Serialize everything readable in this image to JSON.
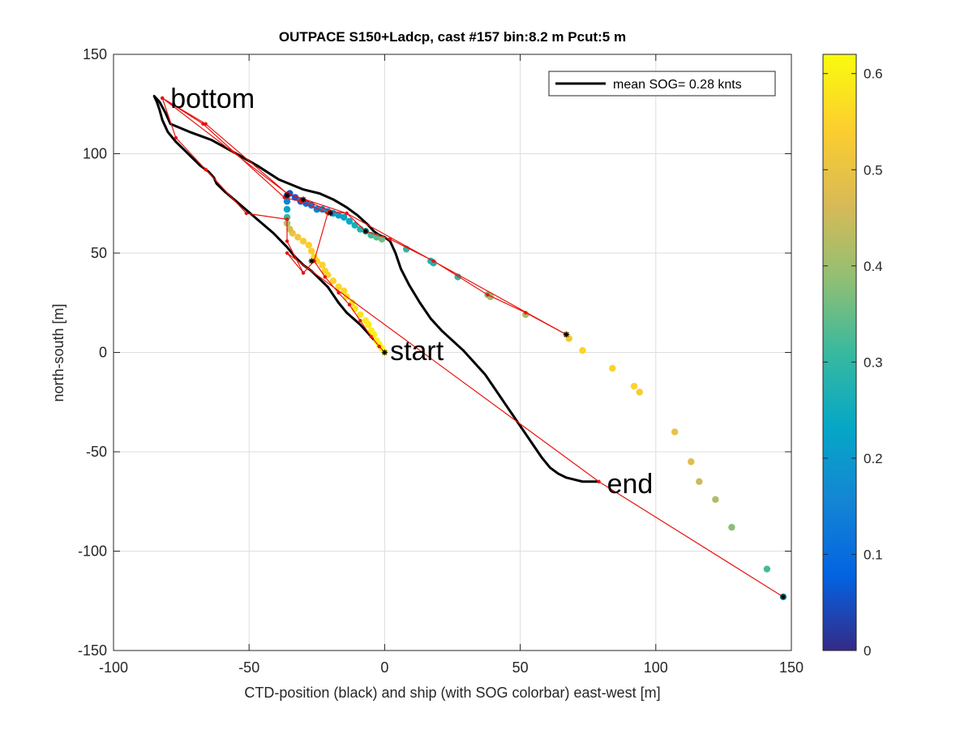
{
  "chart_data": {
    "type": "scatter",
    "title": "OUTPACE S150+Ladcp, cast #157 bin:8.2 m  Pcut:5 m",
    "xlabel": "CTD-position (black) and ship (with SOG colorbar) east-west [m]",
    "ylabel": "north-south [m]",
    "xlim": [
      -100,
      150
    ],
    "ylim": [
      -150,
      150
    ],
    "xticks": [
      -100,
      -50,
      0,
      50,
      100,
      150
    ],
    "yticks": [
      -150,
      -100,
      -50,
      0,
      50,
      100,
      150
    ],
    "grid": true,
    "legend": {
      "placement": "top-right",
      "label": "mean SOG=  0.28 knts",
      "color": "#000000"
    },
    "annotations": [
      {
        "text": "bottom",
        "x": -79,
        "y": 128
      },
      {
        "text": "start",
        "x": 2,
        "y": 1
      },
      {
        "text": "end",
        "x": 82,
        "y": -66
      }
    ],
    "colorbar": {
      "range": [
        0,
        0.62
      ],
      "ticks": [
        0,
        0.1,
        0.2,
        0.3,
        0.4,
        0.5,
        0.6
      ],
      "colormap": [
        "#352a87",
        "#0363e1",
        "#1485d4",
        "#06a7c6",
        "#38b99e",
        "#92bf73",
        "#d9ba56",
        "#fcce2e",
        "#f9fb0e"
      ]
    },
    "series": [
      {
        "name": "CTD position",
        "color": "#000000",
        "kind": "line",
        "x": [
          0,
          -5,
          -9,
          -14,
          -17,
          -19,
          -21,
          -24,
          -27,
          -30,
          -33,
          -36,
          -41,
          -47,
          -53,
          -59,
          -62,
          -63,
          -65,
          -68,
          -71,
          -74,
          -77,
          -80,
          -82,
          -83,
          -84,
          -85,
          -83,
          -81,
          -79,
          -72,
          -64,
          -56,
          -47,
          -39,
          -30,
          -24,
          -19,
          -14,
          -10,
          -6,
          -4,
          -2,
          0,
          2,
          4,
          6,
          9,
          13,
          17,
          21,
          25,
          29,
          33,
          37,
          40,
          43,
          46,
          49,
          52,
          55,
          58,
          61,
          64,
          67,
          70,
          73,
          75,
          77,
          79
        ],
        "y": [
          0,
          8,
          14,
          20,
          25,
          29,
          33,
          37,
          41,
          44,
          48,
          53,
          60,
          67,
          74,
          81,
          85,
          88,
          91,
          94,
          98,
          102,
          106,
          111,
          117,
          122,
          126,
          129,
          126,
          121,
          115,
          111,
          107,
          101,
          94,
          87,
          82,
          80,
          77,
          73,
          69,
          64,
          61,
          59,
          58,
          56,
          50,
          42,
          34,
          25,
          17,
          11,
          6,
          1,
          -5,
          -11,
          -17,
          -23,
          -29,
          -35,
          -41,
          -47,
          -53,
          -58,
          -61,
          -63,
          -64,
          -65,
          -65,
          -65,
          -65
        ]
      },
      {
        "name": "ship track",
        "color": "#e8140f",
        "kind": "line",
        "x": [
          0,
          -2,
          -5,
          -9,
          -13,
          -17,
          -22,
          -26,
          -30,
          -36,
          -36,
          -51,
          -66,
          -77,
          -82,
          -66,
          -36,
          -30,
          -20,
          -14,
          -7,
          2,
          18,
          38,
          52,
          67,
          -14,
          -36,
          -82,
          -67,
          -37,
          -31,
          -21,
          -26,
          -30,
          -36,
          79,
          147
        ],
        "y": [
          0,
          3,
          8,
          16,
          24,
          30,
          38,
          46,
          40,
          56,
          67,
          70,
          92,
          108,
          128,
          115,
          80,
          77,
          71,
          70,
          61,
          57,
          46,
          29,
          20,
          9,
          70,
          80,
          128,
          115,
          78,
          76,
          70,
          46,
          40,
          50,
          -65,
          -123
        ]
      },
      {
        "name": "ship SOG",
        "kind": "colored-points",
        "x": [
          0,
          -1,
          -2,
          -3,
          -4,
          -5,
          -6,
          -7,
          -9,
          -11,
          -12,
          -14,
          -15,
          -17,
          -19,
          -21,
          -22,
          -23,
          -25,
          -26,
          -27,
          -28,
          -30,
          -32,
          -34,
          -35,
          -36,
          -36,
          -36,
          -36,
          -36,
          -35,
          -33,
          -31,
          -29,
          -27,
          -25,
          -23,
          -21,
          -19,
          -17,
          -15,
          -13,
          -11,
          -9,
          -7,
          -5,
          -3,
          -1,
          8,
          17,
          18,
          27,
          38,
          39,
          52,
          67,
          68,
          73,
          84,
          92,
          94,
          107,
          113,
          116,
          122,
          128,
          141,
          147
        ],
        "y": [
          0,
          2,
          4,
          6,
          9,
          11,
          14,
          16,
          19,
          22,
          25,
          28,
          31,
          33,
          36,
          39,
          41,
          44,
          46,
          48,
          51,
          54,
          56,
          58,
          60,
          62,
          65,
          68,
          72,
          76,
          79,
          80,
          78,
          76,
          75,
          74,
          72,
          72,
          71,
          70,
          69,
          68,
          66,
          64,
          62,
          61,
          59,
          58,
          57,
          52,
          46,
          45,
          38,
          29,
          28,
          19,
          9,
          7,
          1,
          -8,
          -17,
          -20,
          -40,
          -55,
          -65,
          -74,
          -88,
          -109,
          -123
        ],
        "sog": [
          0.62,
          0.62,
          0.61,
          0.61,
          0.6,
          0.6,
          0.59,
          0.59,
          0.58,
          0.58,
          0.57,
          0.57,
          0.56,
          0.56,
          0.55,
          0.55,
          0.55,
          0.55,
          0.55,
          0.55,
          0.54,
          0.54,
          0.53,
          0.52,
          0.5,
          0.47,
          0.42,
          0.3,
          0.22,
          0.15,
          0.1,
          0.06,
          0.06,
          0.08,
          0.1,
          0.12,
          0.14,
          0.16,
          0.18,
          0.2,
          0.21,
          0.22,
          0.24,
          0.26,
          0.28,
          0.3,
          0.32,
          0.34,
          0.36,
          0.3,
          0.28,
          0.27,
          0.3,
          0.38,
          0.4,
          0.42,
          0.5,
          0.52,
          0.55,
          0.55,
          0.55,
          0.53,
          0.5,
          0.48,
          0.45,
          0.42,
          0.38,
          0.32,
          0.25
        ]
      },
      {
        "name": "segment markers",
        "kind": "markers",
        "color": "#000000",
        "x": [
          0,
          -7,
          -20,
          -30,
          -36,
          -27,
          67,
          147
        ],
        "y": [
          0,
          61,
          70,
          77,
          79,
          46,
          9,
          -123
        ]
      }
    ]
  }
}
